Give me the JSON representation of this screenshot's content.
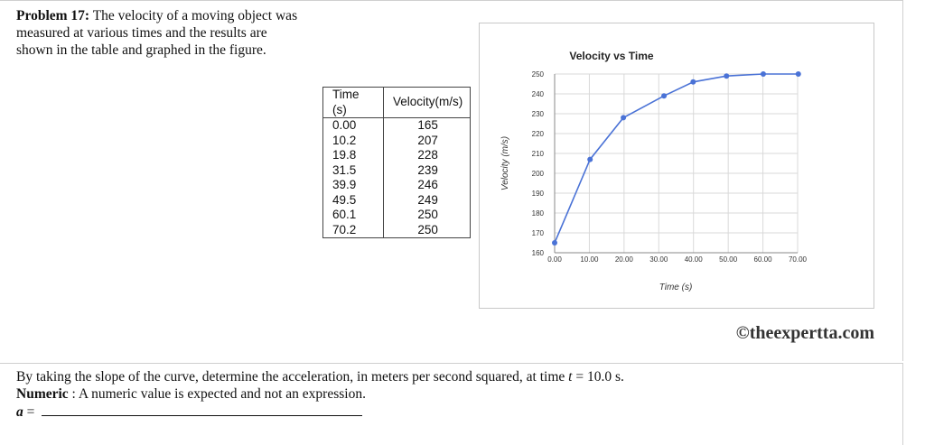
{
  "problem": {
    "label": "Problem 17:",
    "text": "The velocity of a moving object was measured at various times and the results are shown in the table and graphed in the figure."
  },
  "table": {
    "headers": [
      "Time (s)",
      "Velocity(m/s)"
    ],
    "rows": [
      [
        "0.00",
        "165"
      ],
      [
        "10.2",
        "207"
      ],
      [
        "19.8",
        "228"
      ],
      [
        "31.5",
        "239"
      ],
      [
        "39.9",
        "246"
      ],
      [
        "49.5",
        "249"
      ],
      [
        "60.1",
        "250"
      ],
      [
        "70.2",
        "250"
      ]
    ]
  },
  "chart_data": {
    "type": "line",
    "title": "Velocity vs Time",
    "xlabel": "Time (s)",
    "ylabel": "Velocity (m/s)",
    "x": [
      0.0,
      10.2,
      19.8,
      31.5,
      39.9,
      49.5,
      60.1,
      70.2
    ],
    "series": [
      {
        "values": [
          165,
          207,
          228,
          239,
          246,
          249,
          250,
          250
        ]
      }
    ],
    "xlim": [
      0,
      70
    ],
    "ylim": [
      160,
      250
    ],
    "xticks": [
      "0.00",
      "10.00",
      "20.00",
      "30.00",
      "40.00",
      "50.00",
      "60.00",
      "70.00"
    ],
    "yticks": [
      "160",
      "170",
      "180",
      "190",
      "200",
      "210",
      "220",
      "230",
      "240",
      "250"
    ],
    "grid": true,
    "markers": true,
    "line_color": "#4a72d6"
  },
  "copyright": "©theexpertta.com",
  "question": {
    "text_before": "By taking the slope of the curve, determine the acceleration, in meters per second squared, at time",
    "var_t": "t",
    "text_after": "= 10.0 s.",
    "numeric_label": "Numeric",
    "numeric_note": ": A numeric value is expected and not an expression.",
    "answer_var": "a",
    "answer_eq": "="
  }
}
